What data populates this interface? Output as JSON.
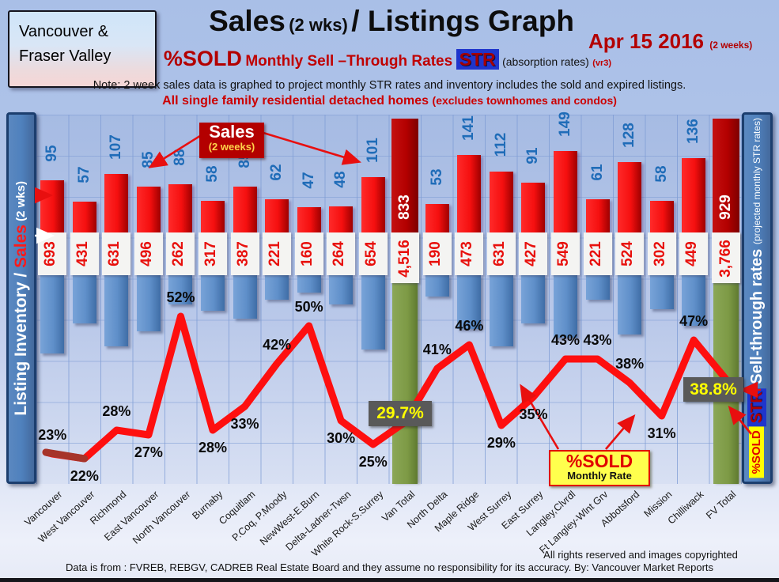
{
  "header": {
    "region_box": {
      "line1": "Vancouver &",
      "line2": "Fraser Valley"
    },
    "title": {
      "part1": "Sales",
      "part2": "(2 wks)",
      "part3": "/ Listings Graph"
    },
    "date": {
      "text": "Apr 15 2016",
      "suffix": "(2 weeks)"
    },
    "subtitle": {
      "sold": "%SOLD",
      "rates": "Monthly Sell –Through Rates",
      "str_chip": "STR",
      "absorption": "(absorption rates)",
      "version": "(vr3)"
    },
    "note": "Note: 2 week sales data is graphed to project monthly STR rates and inventory includes the sold and expired listings.",
    "scope": {
      "main": "All single family residential detached homes",
      "paren": "(excludes townhomes and condos)"
    }
  },
  "left_axis": {
    "inventory_part": "Listing Inventory / ",
    "sales_part": "Sales",
    "weeks_part": " (2  wks)"
  },
  "right_axis": {
    "sold_chip": "%SOLD",
    "str_chip": "STR",
    "title": " Sell-through rates ",
    "subtitle": "(projected monthly STR rates)"
  },
  "annotations": {
    "sales_box": {
      "title": "Sales",
      "subtitle": "(2 weeks)"
    },
    "sold_box": {
      "title": "%SOLD",
      "subtitle": "Monthly Rate"
    },
    "van_total_str": "29.7%",
    "fv_total_str": "38.8%"
  },
  "footer": {
    "rights": "All rights reserved and  images copyrighted",
    "source": "Data is from : FVREB, REBGV, CADREB Real Estate Board and they assume no responsibility for its accuracy. By: Vancouver Market Reports"
  },
  "colors": {
    "sales_bar": "#f50f0f",
    "total_sales_bar": "#b30000",
    "inventory_bar": "#5f8fc9",
    "total_inventory_bar": "#7d9a45",
    "str_line": "#fe0f0f",
    "str_line_dark_first_segment": "#a6342a",
    "sales_number_text": "#1f6cb8",
    "inventory_number_text": "#e8100c",
    "total_sales_number_text": "#ffffff",
    "str_total_box_bg": "#595959",
    "str_total_box_text": "#ffff00"
  },
  "chart_data": {
    "type": "bar+line",
    "title": "Sales (2 wks)/ Listings Graph",
    "categories": [
      "Vancouver",
      "West Vancouver",
      "Richmond",
      "East Vancouver",
      "North Vancouver",
      "Burnaby",
      "Coquitlam",
      "P.Coq, P.Moody",
      "NewWest-E.Burn",
      "Delta-Ladner-Twsn",
      "White Rock-S.Surrey",
      "Van Total",
      "North Delta",
      "Maple Ridge",
      "West Surrey",
      "East Surrey",
      "Langley,Clvrdl",
      "Ft Langley-Wlnt Grv",
      "Abbotsford",
      "Mission",
      "Chilliwack",
      "FV Total"
    ],
    "series": [
      {
        "name": "Sales (2 weeks)",
        "values": [
          95,
          57,
          107,
          85,
          88,
          58,
          85,
          62,
          47,
          48,
          101,
          833,
          53,
          141,
          112,
          91,
          149,
          61,
          128,
          58,
          136,
          929
        ]
      },
      {
        "name": "Listing Inventory",
        "values": [
          693,
          431,
          631,
          496,
          262,
          317,
          387,
          221,
          160,
          264,
          654,
          4516,
          190,
          473,
          631,
          427,
          549,
          221,
          524,
          302,
          449,
          3766
        ]
      },
      {
        "name": "%SOLD monthly sell-through rate",
        "values": [
          23,
          22,
          28,
          27,
          52,
          28,
          33,
          42,
          50,
          30,
          25,
          29.7,
          41,
          46,
          29,
          35,
          43,
          43,
          38,
          31,
          47,
          38.8
        ]
      }
    ],
    "inventory_labels": [
      "693",
      "431",
      "631",
      "496",
      "262",
      "317",
      "387",
      "221",
      "160",
      "264",
      "654",
      "4,516",
      "190",
      "473",
      "631",
      "427",
      "549",
      "221",
      "524",
      "302",
      "449",
      "3,766"
    ],
    "sales_labels": [
      "95",
      "57",
      "107",
      "85",
      "88",
      "58",
      "85",
      "62",
      "47",
      "48",
      "101",
      "833",
      "53",
      "141",
      "112",
      "91",
      "149",
      "61",
      "128",
      "58",
      "136",
      "929"
    ],
    "str_labels": [
      "23%",
      "22%",
      "28%",
      "27%",
      "52%",
      "28%",
      "33%",
      "42%",
      "50%",
      "30%",
      "25%",
      "29.7%",
      "41%",
      "46%",
      "29%",
      "35%",
      "43%",
      "43%",
      "38%",
      "31%",
      "47%",
      "38.8%"
    ],
    "str_label_side": [
      "above",
      "below",
      "above",
      "below",
      "above",
      "below",
      "below",
      "above",
      "above",
      "below",
      "below",
      "box",
      "above",
      "above",
      "below",
      "below",
      "above",
      "above",
      "above",
      "below",
      "above",
      "box"
    ],
    "totals_indices": [
      11,
      21
    ],
    "legend": "none",
    "grid": "on",
    "str_axis_note": "no numeric axis shown; % values printed at each vertex"
  }
}
